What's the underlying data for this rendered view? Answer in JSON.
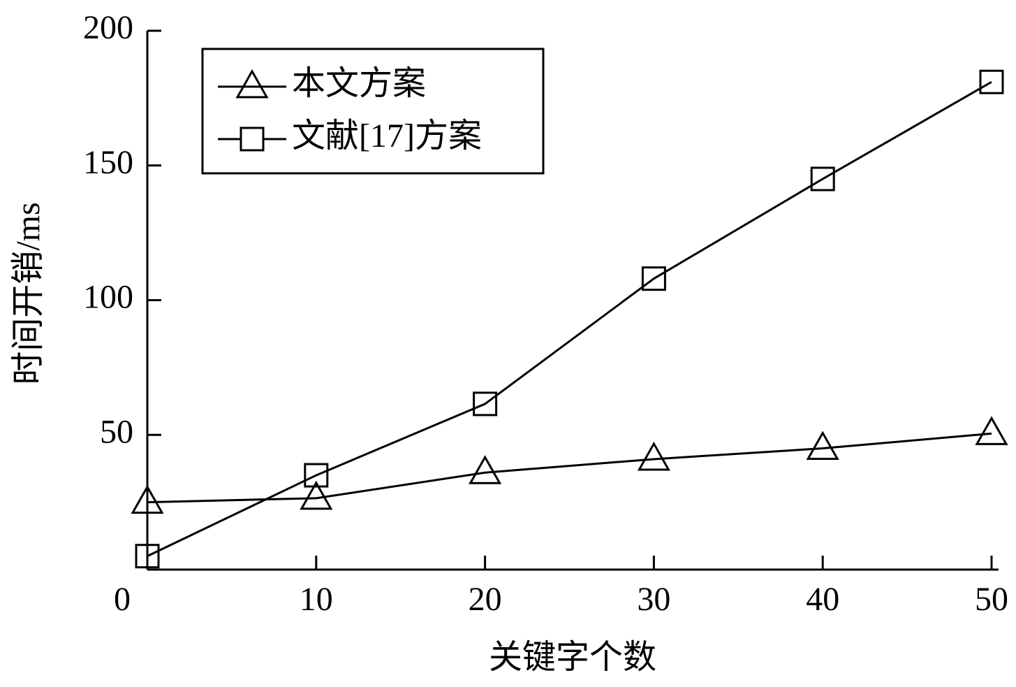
{
  "chart_data": {
    "type": "line",
    "x_label": "关键字个数",
    "y_label": "时间开销/ms",
    "x": [
      0,
      10,
      20,
      30,
      40,
      50
    ],
    "series": [
      {
        "name": "本文方案",
        "color": "#000000",
        "marker": "triangle",
        "values": [
          25,
          26.5,
          36,
          41,
          45,
          50.5
        ]
      },
      {
        "name": "文献[17]方案",
        "color": "#000000",
        "marker": "square",
        "values": [
          5,
          35,
          61.5,
          108,
          145,
          181
        ]
      }
    ],
    "xlim": [
      0,
      50
    ],
    "xticks": [
      0,
      10,
      20,
      30,
      40,
      50
    ],
    "ylim": [
      0,
      200
    ],
    "yticks": [
      50,
      100,
      150,
      200
    ],
    "legend": "upper left"
  }
}
